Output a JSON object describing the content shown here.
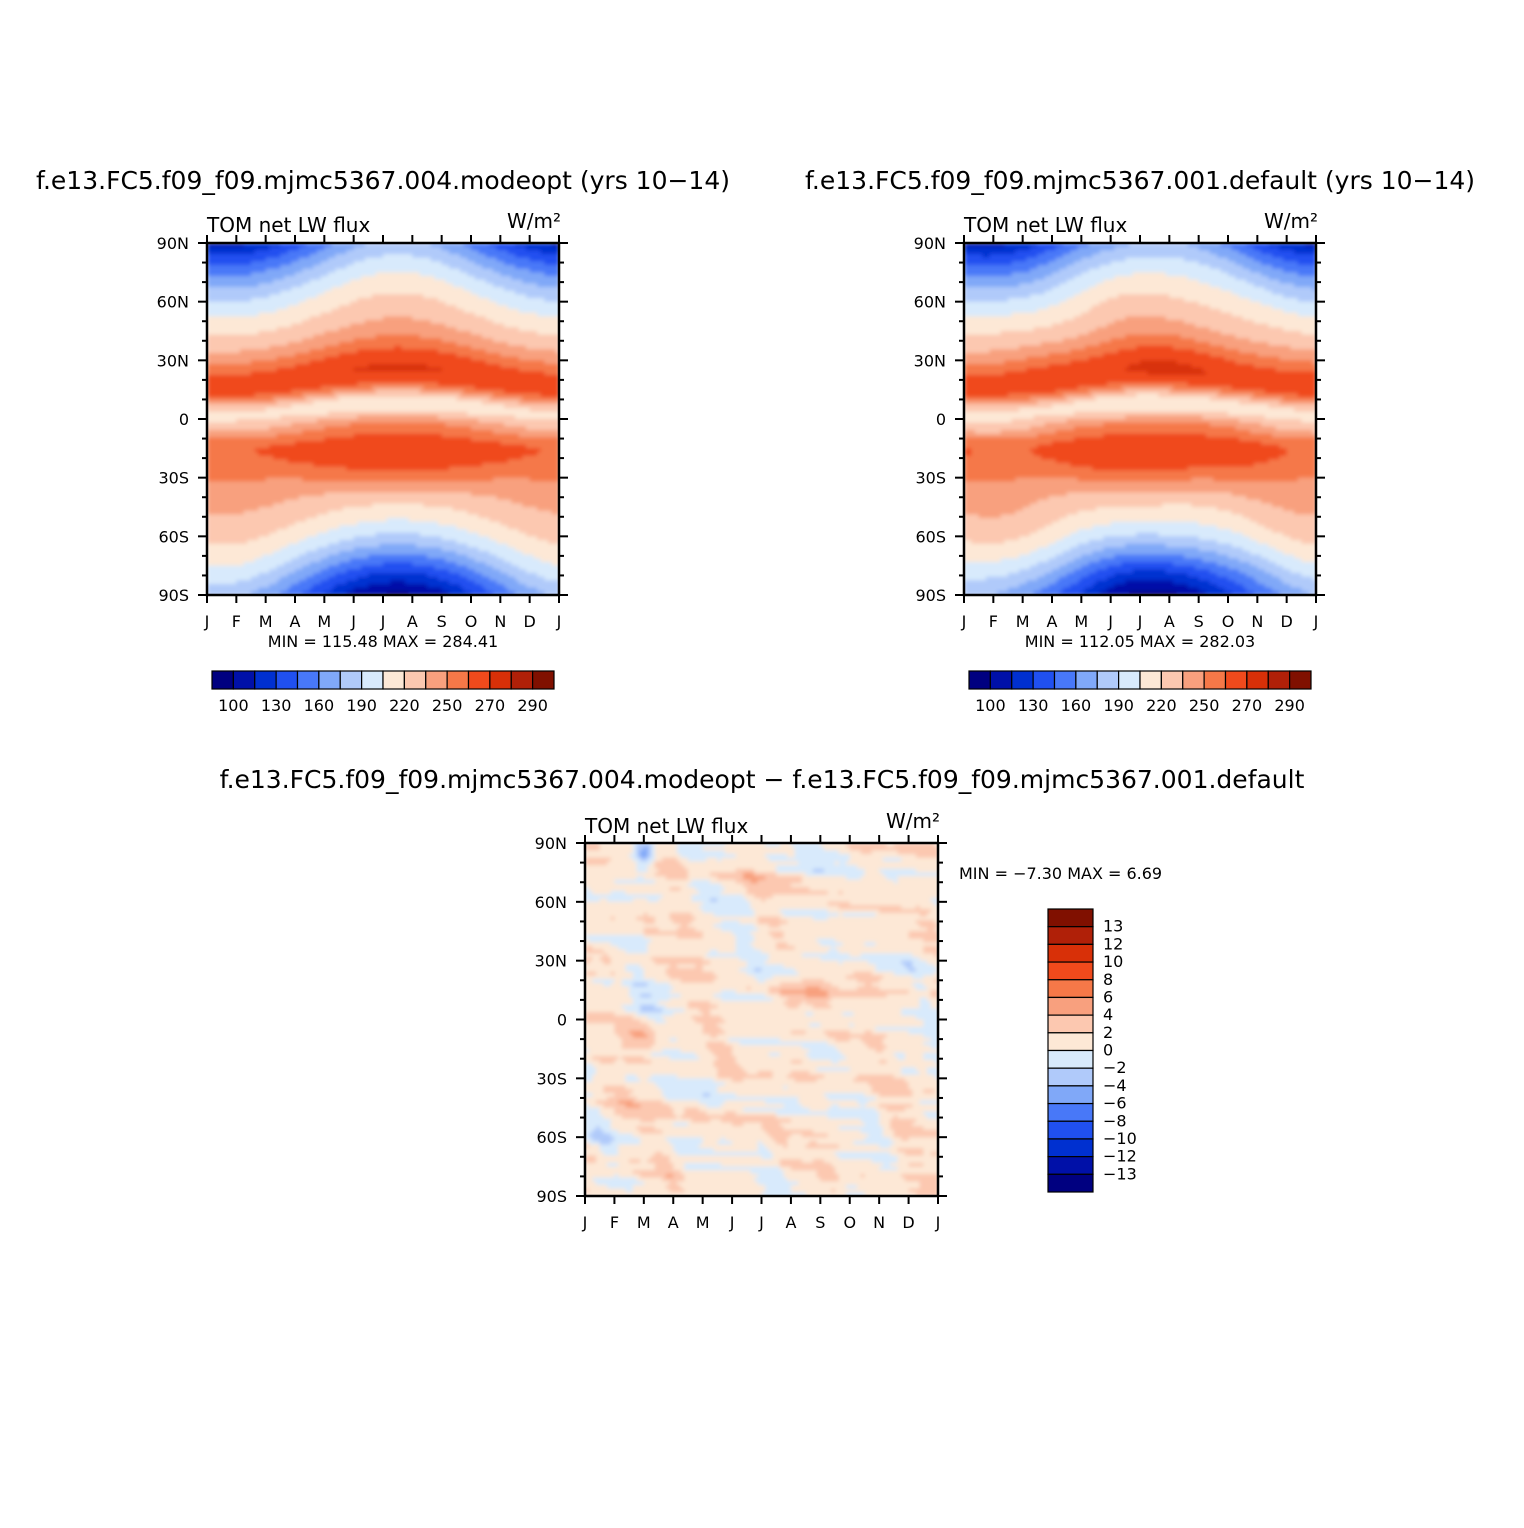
{
  "chart_data": [
    {
      "type": "heatmap",
      "id": "p1",
      "title": "f.e13.FC5.f09_f09.mjmc5367.004.modeopt (yrs 10−14)",
      "left_label": "TOM net LW flux",
      "units": "W/m²",
      "x": [
        "J",
        "F",
        "M",
        "A",
        "M",
        "J",
        "J",
        "A",
        "S",
        "O",
        "N",
        "D",
        "J"
      ],
      "y": [
        "90N",
        "60N",
        "30N",
        "0",
        "30S",
        "60S",
        "90S"
      ],
      "min": 115.48,
      "max": 284.41,
      "minmax_text": "MIN = 115.48 MAX = 284.41",
      "colorbar_labels": [
        "100",
        "130",
        "160",
        "190",
        "220",
        "250",
        "270",
        "290"
      ],
      "xlim": [
        0,
        12
      ],
      "ylim": [
        -90,
        90
      ]
    },
    {
      "type": "heatmap",
      "id": "p2",
      "title": "f.e13.FC5.f09_f09.mjmc5367.001.default (yrs 10−14)",
      "left_label": "TOM net LW flux",
      "units": "W/m²",
      "x": [
        "J",
        "F",
        "M",
        "A",
        "M",
        "J",
        "J",
        "A",
        "S",
        "O",
        "N",
        "D",
        "J"
      ],
      "y": [
        "90N",
        "60N",
        "30N",
        "0",
        "30S",
        "60S",
        "90S"
      ],
      "min": 112.05,
      "max": 282.03,
      "minmax_text": "MIN = 112.05 MAX = 282.03",
      "colorbar_labels": [
        "100",
        "130",
        "160",
        "190",
        "220",
        "250",
        "270",
        "290"
      ],
      "xlim": [
        0,
        12
      ],
      "ylim": [
        -90,
        90
      ]
    },
    {
      "type": "heatmap",
      "id": "p3",
      "title": "f.e13.FC5.f09_f09.mjmc5367.004.modeopt − f.e13.FC5.f09_f09.mjmc5367.001.default",
      "left_label": "TOM net LW flux",
      "units": "W/m²",
      "x": [
        "J",
        "F",
        "M",
        "A",
        "M",
        "J",
        "J",
        "A",
        "S",
        "O",
        "N",
        "D",
        "J"
      ],
      "y": [
        "90N",
        "60N",
        "30N",
        "0",
        "30S",
        "60S",
        "90S"
      ],
      "min": -7.3,
      "max": 6.69,
      "minmax_text": "MIN =   −7.30 MAX =     6.69",
      "colorbar_labels": [
        "13",
        "12",
        "10",
        "8",
        "6",
        "4",
        "2",
        "0",
        "−2",
        "−4",
        "−6",
        "−8",
        "−10",
        "−12",
        "−13"
      ],
      "xlim": [
        0,
        12
      ],
      "ylim": [
        -90,
        90
      ]
    }
  ],
  "palettes": {
    "abs": [
      "#000080",
      "#0010a8",
      "#0030d0",
      "#2050f0",
      "#4878f8",
      "#80a8f8",
      "#b0cafa",
      "#d8eafc",
      "#fde8d6",
      "#fcc8b0",
      "#f8a07e",
      "#f57848",
      "#f04a1c",
      "#d83008",
      "#b02008",
      "#801000"
    ],
    "diff": [
      "#801000",
      "#b02008",
      "#d83008",
      "#f04a1c",
      "#f57848",
      "#f8a07e",
      "#fcc8b0",
      "#fde8d6",
      "#d8eafc",
      "#b0cafa",
      "#80a8f8",
      "#4878f8",
      "#2050f0",
      "#0030d0",
      "#0010a8",
      "#000080"
    ]
  }
}
